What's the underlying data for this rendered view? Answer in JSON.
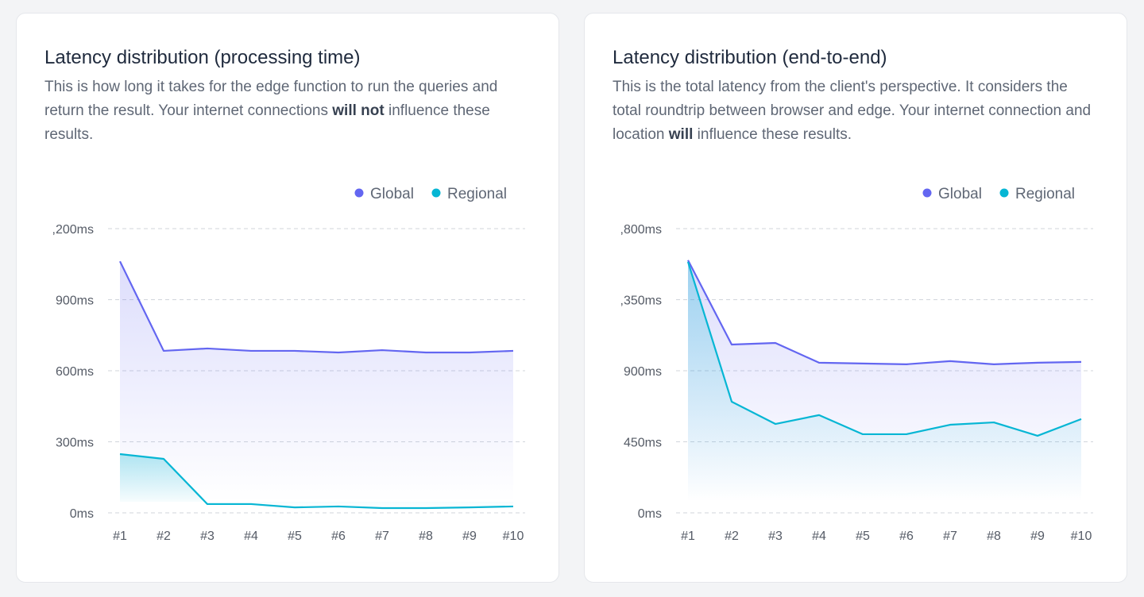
{
  "cards": [
    {
      "title": "Latency distribution (processing time)",
      "desc_a": "This is how long it takes for the edge function to run the queries and return the result. Your internet connections ",
      "desc_bold": "will not",
      "desc_b": " influence these results."
    },
    {
      "title": "Latency distribution (end-to-end)",
      "desc_a": "This is the total latency from the client's perspective. It considers the total roundtrip between browser and edge. Your internet connection and location ",
      "desc_bold": "will",
      "desc_b": " influence these results."
    }
  ],
  "chart_data": [
    {
      "type": "area",
      "categories": [
        "#1",
        "#2",
        "#3",
        "#4",
        "#5",
        "#6",
        "#7",
        "#8",
        "#9",
        "#10"
      ],
      "ylim": [
        0,
        1200
      ],
      "yticks": [
        0,
        300,
        600,
        900,
        1200
      ],
      "ytick_labels": [
        "0ms",
        "300ms",
        "600ms",
        "900ms",
        ",200ms"
      ],
      "grid": true,
      "legend": "top-right",
      "series": [
        {
          "name": "Global",
          "color": "#6366f1",
          "values": [
            1062,
            684,
            694,
            684,
            684,
            677,
            687,
            677,
            677,
            684
          ]
        },
        {
          "name": "Regional",
          "color": "#06b6d4",
          "values": [
            248,
            228,
            37,
            37,
            23,
            27,
            20,
            20,
            23,
            27
          ]
        }
      ]
    },
    {
      "type": "area",
      "categories": [
        "#1",
        "#2",
        "#3",
        "#4",
        "#5",
        "#6",
        "#7",
        "#8",
        "#9",
        "#10"
      ],
      "ylim": [
        0,
        1800
      ],
      "yticks": [
        0,
        450,
        900,
        1350,
        1800
      ],
      "ytick_labels": [
        "0ms",
        "450ms",
        "900ms",
        ",350ms",
        ",800ms"
      ],
      "grid": true,
      "legend": "top-right",
      "series": [
        {
          "name": "Global",
          "color": "#6366f1",
          "values": [
            1600,
            1066,
            1076,
            951,
            946,
            941,
            961,
            941,
            951,
            956
          ]
        },
        {
          "name": "Regional",
          "color": "#06b6d4",
          "values": [
            1590,
            704,
            563,
            619,
            498,
            498,
            558,
            573,
            488,
            594
          ]
        }
      ]
    }
  ]
}
